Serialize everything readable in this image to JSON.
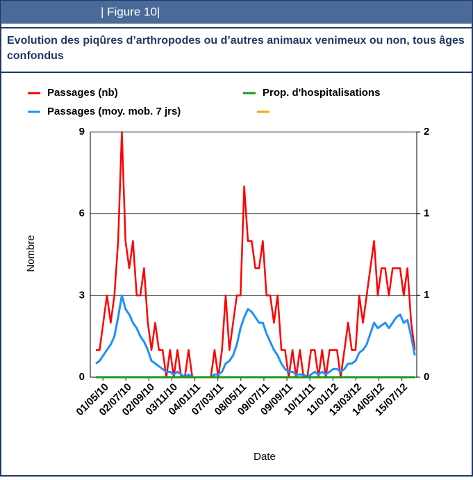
{
  "header": "| Figure 10|",
  "chart_data": {
    "type": "line",
    "title": "Evolution des piqûres d’arthropodes ou d’autres animaux venimeux ou non, tous âges confondus",
    "ylabel": "Nombre",
    "xlabel": "Date",
    "x": [
      0,
      10,
      20,
      30,
      40,
      50,
      60,
      70,
      80,
      90,
      100,
      110,
      120,
      130,
      140,
      150,
      160,
      170,
      180,
      190,
      200,
      210,
      220,
      230,
      240,
      250,
      260,
      270,
      280,
      290,
      300,
      310,
      320,
      330,
      340,
      350,
      360,
      370,
      380,
      390,
      400,
      410,
      420,
      430,
      440,
      450,
      460,
      470,
      480,
      490,
      500,
      510,
      520,
      530,
      540,
      550,
      560,
      570,
      580,
      590,
      600,
      610,
      620,
      630,
      640,
      650,
      660,
      670,
      680,
      690,
      700,
      710,
      720,
      730,
      740,
      750,
      760,
      770,
      780,
      790,
      800,
      810,
      820,
      830,
      840,
      850,
      860
    ],
    "xlim": [
      -15,
      865
    ],
    "xticks": [
      {
        "value": 19,
        "label": "01/05/10"
      },
      {
        "value": 81,
        "label": "02/07/10"
      },
      {
        "value": 143,
        "label": "02/09/10"
      },
      {
        "value": 205,
        "label": "03/11/10"
      },
      {
        "value": 267,
        "label": "04/01/11"
      },
      {
        "value": 329,
        "label": "07/03/11"
      },
      {
        "value": 391,
        "label": "08/05/11"
      },
      {
        "value": 453,
        "label": "09/07/11"
      },
      {
        "value": 515,
        "label": "09/09/11"
      },
      {
        "value": 577,
        "label": "10/11/11"
      },
      {
        "value": 639,
        "label": "11/01/12"
      },
      {
        "value": 701,
        "label": "13/03/12"
      },
      {
        "value": 763,
        "label": "14/05/12"
      },
      {
        "value": 825,
        "label": "15/07/12"
      }
    ],
    "ylim": [
      0,
      9
    ],
    "yticks": [
      0,
      3,
      6,
      9
    ],
    "y2lim": [
      0,
      2
    ],
    "y2ticks": [
      0,
      {
        "value": 0.667,
        "label": "1"
      },
      {
        "value": 1.333,
        "label": "1"
      },
      2
    ],
    "grid": true,
    "series": [
      {
        "name": "Passages (nb)",
        "color": "#ff0000",
        "values": [
          1,
          1,
          2,
          3,
          2,
          3,
          5,
          9,
          5,
          4,
          5,
          3,
          3,
          4,
          2,
          1,
          2,
          1,
          1,
          0,
          1,
          0,
          1,
          0,
          0,
          1,
          0,
          0,
          0,
          0,
          0,
          0,
          1,
          0,
          1,
          3,
          1,
          2,
          3,
          3,
          7,
          5,
          5,
          4,
          4,
          5,
          3,
          3,
          2,
          3,
          1,
          1,
          0,
          1,
          0,
          1,
          0,
          0,
          1,
          1,
          0,
          1,
          0,
          1,
          1,
          1,
          0,
          1,
          2,
          1,
          1,
          3,
          2,
          3,
          4,
          5,
          3,
          4,
          4,
          3,
          4,
          4,
          4,
          3,
          4,
          2,
          1
        ]
      },
      {
        "name": "Passages (moy. mob. 7 jrs)",
        "color": "#1e90ff",
        "values": [
          0.5,
          0.6,
          0.8,
          1,
          1.2,
          1.5,
          2.2,
          3,
          2.5,
          2.3,
          2,
          1.8,
          1.5,
          1.3,
          1,
          0.6,
          0.5,
          0.4,
          0.3,
          0.2,
          0.2,
          0.1,
          0.2,
          0.1,
          0,
          0.1,
          0,
          0,
          0,
          0,
          0,
          0,
          0.1,
          0.1,
          0.2,
          0.5,
          0.6,
          0.8,
          1.2,
          1.8,
          2.2,
          2.5,
          2.4,
          2.2,
          2,
          2,
          1.6,
          1.3,
          1,
          0.8,
          0.5,
          0.3,
          0.2,
          0.2,
          0.1,
          0.1,
          0.1,
          0,
          0.1,
          0.2,
          0.1,
          0.2,
          0.1,
          0.2,
          0.3,
          0.3,
          0.2,
          0.3,
          0.5,
          0.5,
          0.6,
          0.9,
          1,
          1.2,
          1.6,
          2,
          1.8,
          1.9,
          2,
          1.8,
          2,
          2.2,
          2.3,
          2,
          2.1,
          1.5,
          0.8
        ]
      },
      {
        "name": "Prop. d'hospitalisations",
        "color": "#1a9a1a",
        "axis": "y2",
        "values": [
          0,
          0,
          0,
          0,
          0,
          0,
          0,
          0,
          0,
          0,
          0,
          0,
          0,
          0,
          0,
          0,
          0,
          0,
          0,
          0,
          0,
          0,
          0,
          0,
          0,
          0,
          0,
          0,
          0,
          0,
          0,
          0,
          0,
          0,
          0,
          0,
          0,
          0,
          0,
          0,
          0,
          0,
          0,
          0,
          0,
          0,
          0,
          0,
          0,
          0,
          0,
          0,
          0,
          0,
          0,
          0,
          0,
          0,
          0,
          0,
          0,
          0,
          0,
          0,
          0,
          0,
          0,
          0,
          0,
          0,
          0,
          0,
          0,
          0,
          0,
          0,
          0,
          0,
          0,
          0,
          0,
          0,
          0,
          0,
          0,
          0,
          0
        ]
      }
    ]
  }
}
